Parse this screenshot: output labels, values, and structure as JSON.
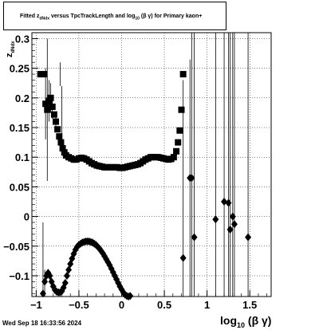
{
  "title": {
    "prefix": "Fitted  z",
    "sub": "dNdx",
    "suffix_a": "  versus TpcTrackLength and log",
    "sub2": "10",
    "suffix_b": " (β γ) for Primary kaon+"
  },
  "ylabel": {
    "main": "z",
    "sub": "dNdx"
  },
  "xlabel": {
    "main": "log",
    "sub": "10",
    "suffix": " (β γ)"
  },
  "date_stamp": "Wed Sep 18 16:33:56 2024",
  "chart_data": {
    "type": "scatter",
    "xlim": [
      -1.05,
      1.75
    ],
    "ylim": [
      -0.135,
      0.31
    ],
    "x_ticks": [
      -1,
      -0.5,
      0,
      0.5,
      1,
      1.5
    ],
    "x_tick_labels": [
      "−1",
      "−0.5",
      "0",
      "0.5",
      "1",
      "1.5"
    ],
    "y_ticks": [
      -0.1,
      -0.05,
      0,
      0.05,
      0.1,
      0.15,
      0.2,
      0.25,
      0.3
    ],
    "y_tick_labels": [
      "−0.1",
      "−0.05",
      "0",
      "0.05",
      "0.1",
      "0.15",
      "0.2",
      "0.25",
      "0.3"
    ],
    "grid": true,
    "marker_color": "#000000",
    "series": [
      {
        "marker": "square",
        "points": [
          [
            -0.95,
            0.24
          ],
          [
            -0.91,
            0.24
          ],
          [
            -0.89,
            0.19
          ],
          [
            -0.87,
            0.18
          ],
          [
            -0.85,
            0.195
          ],
          [
            -0.83,
            0.2
          ],
          [
            -0.81,
            0.185
          ],
          [
            -0.79,
            0.172
          ],
          [
            -0.77,
            0.16
          ],
          [
            -0.75,
            0.147
          ],
          [
            -0.73,
            0.135
          ],
          [
            -0.71,
            0.125
          ],
          [
            -0.69,
            0.115
          ],
          [
            -0.67,
            0.108
          ],
          [
            -0.65,
            0.103
          ],
          [
            -0.62,
            0.1
          ],
          [
            -0.59,
            0.098
          ],
          [
            -0.56,
            0.096
          ],
          [
            -0.53,
            0.096
          ],
          [
            -0.5,
            0.098
          ],
          [
            -0.47,
            0.099
          ],
          [
            -0.44,
            0.098
          ],
          [
            -0.41,
            0.096
          ],
          [
            -0.38,
            0.093
          ],
          [
            -0.35,
            0.09
          ],
          [
            -0.32,
            0.088
          ],
          [
            -0.29,
            0.086
          ],
          [
            -0.26,
            0.085
          ],
          [
            -0.23,
            0.084
          ],
          [
            -0.2,
            0.083
          ],
          [
            -0.17,
            0.083
          ],
          [
            -0.14,
            0.083
          ],
          [
            -0.11,
            0.083
          ],
          [
            -0.08,
            0.083
          ],
          [
            -0.05,
            0.083
          ],
          [
            -0.02,
            0.082
          ],
          [
            0.01,
            0.082
          ],
          [
            0.04,
            0.083
          ],
          [
            0.07,
            0.084
          ],
          [
            0.1,
            0.085
          ],
          [
            0.13,
            0.086
          ],
          [
            0.16,
            0.087
          ],
          [
            0.19,
            0.088
          ],
          [
            0.22,
            0.09
          ],
          [
            0.25,
            0.093
          ],
          [
            0.28,
            0.096
          ],
          [
            0.31,
            0.098
          ],
          [
            0.34,
            0.1
          ],
          [
            0.37,
            0.1
          ],
          [
            0.4,
            0.1
          ],
          [
            0.43,
            0.1
          ],
          [
            0.46,
            0.099
          ],
          [
            0.49,
            0.098
          ],
          [
            0.52,
            0.097
          ],
          [
            0.55,
            0.096
          ],
          [
            0.58,
            0.097
          ],
          [
            0.61,
            0.1
          ],
          [
            0.64,
            0.11
          ],
          [
            0.66,
            0.125
          ],
          [
            0.68,
            0.145
          ],
          [
            0.7,
            0.18
          ],
          [
            0.72,
            0.24
          ]
        ],
        "errors": [
          [
            -0.89,
            0.19,
            0.06
          ],
          [
            -0.87,
            0.18,
            0.12
          ],
          [
            -0.85,
            0.195,
            0.035
          ],
          [
            -0.83,
            0.2,
            0.025
          ],
          [
            -0.81,
            0.185,
            0.02
          ],
          [
            -0.77,
            0.16,
            0.01
          ],
          [
            -0.7,
            0.18,
            0.04
          ],
          [
            -0.72,
            0.24,
            0.02
          ]
        ]
      },
      {
        "marker": "diamond",
        "points": [
          [
            -0.92,
            -0.13
          ],
          [
            -0.9,
            -0.11
          ],
          [
            -0.88,
            -0.1
          ],
          [
            -0.86,
            -0.095
          ],
          [
            -0.84,
            -0.1
          ],
          [
            -0.82,
            -0.11
          ],
          [
            -0.8,
            -0.118
          ],
          [
            -0.78,
            -0.124
          ],
          [
            -0.76,
            -0.127
          ],
          [
            -0.74,
            -0.128
          ],
          [
            -0.72,
            -0.128
          ],
          [
            -0.7,
            -0.126
          ],
          [
            -0.68,
            -0.12
          ],
          [
            -0.66,
            -0.112
          ],
          [
            -0.64,
            -0.1
          ],
          [
            -0.62,
            -0.09
          ],
          [
            -0.6,
            -0.08
          ],
          [
            -0.58,
            -0.071
          ],
          [
            -0.56,
            -0.063
          ],
          [
            -0.54,
            -0.056
          ],
          [
            -0.52,
            -0.051
          ],
          [
            -0.5,
            -0.048
          ],
          [
            -0.48,
            -0.046
          ],
          [
            -0.46,
            -0.044
          ],
          [
            -0.44,
            -0.043
          ],
          [
            -0.42,
            -0.042
          ],
          [
            -0.4,
            -0.042
          ],
          [
            -0.38,
            -0.042
          ],
          [
            -0.36,
            -0.043
          ],
          [
            -0.34,
            -0.044
          ],
          [
            -0.32,
            -0.046
          ],
          [
            -0.3,
            -0.048
          ],
          [
            -0.28,
            -0.051
          ],
          [
            -0.26,
            -0.054
          ],
          [
            -0.24,
            -0.058
          ],
          [
            -0.22,
            -0.062
          ],
          [
            -0.2,
            -0.067
          ],
          [
            -0.18,
            -0.072
          ],
          [
            -0.16,
            -0.077
          ],
          [
            -0.14,
            -0.082
          ],
          [
            -0.12,
            -0.088
          ],
          [
            -0.1,
            -0.094
          ],
          [
            -0.08,
            -0.1
          ],
          [
            -0.06,
            -0.106
          ],
          [
            -0.04,
            -0.112
          ],
          [
            -0.02,
            -0.118
          ],
          [
            0.0,
            -0.123
          ],
          [
            0.02,
            -0.128
          ],
          [
            0.04,
            -0.132
          ],
          [
            0.06,
            -0.134
          ],
          [
            0.08,
            -0.135
          ],
          [
            0.1,
            -0.134
          ],
          [
            0.72,
            -0.07
          ],
          [
            0.8,
            0.065
          ],
          [
            0.82,
            0.065
          ],
          [
            0.85,
            -0.035
          ],
          [
            1.1,
            -0.005
          ],
          [
            1.2,
            0.025
          ],
          [
            1.25,
            0.023
          ],
          [
            1.27,
            -0.022
          ],
          [
            1.3,
            0.0
          ],
          [
            1.32,
            -0.013
          ],
          [
            1.48,
            -0.035
          ]
        ],
        "errors": [
          [
            -0.92,
            -0.13,
            0.12
          ],
          [
            -0.9,
            -0.11,
            0.02
          ],
          [
            0.72,
            -0.07,
            0.3
          ],
          [
            0.8,
            0.065,
            0.2
          ],
          [
            0.82,
            0.065,
            0.3
          ],
          [
            0.85,
            -0.035,
            0.4
          ],
          [
            1.1,
            -0.005,
            0.4
          ],
          [
            1.2,
            0.025,
            0.4
          ],
          [
            1.25,
            0.023,
            0.4
          ],
          [
            1.27,
            -0.022,
            0.4
          ],
          [
            1.3,
            0.0,
            0.4
          ],
          [
            1.32,
            -0.013,
            0.4
          ],
          [
            1.48,
            -0.035,
            0.4
          ]
        ]
      }
    ]
  }
}
